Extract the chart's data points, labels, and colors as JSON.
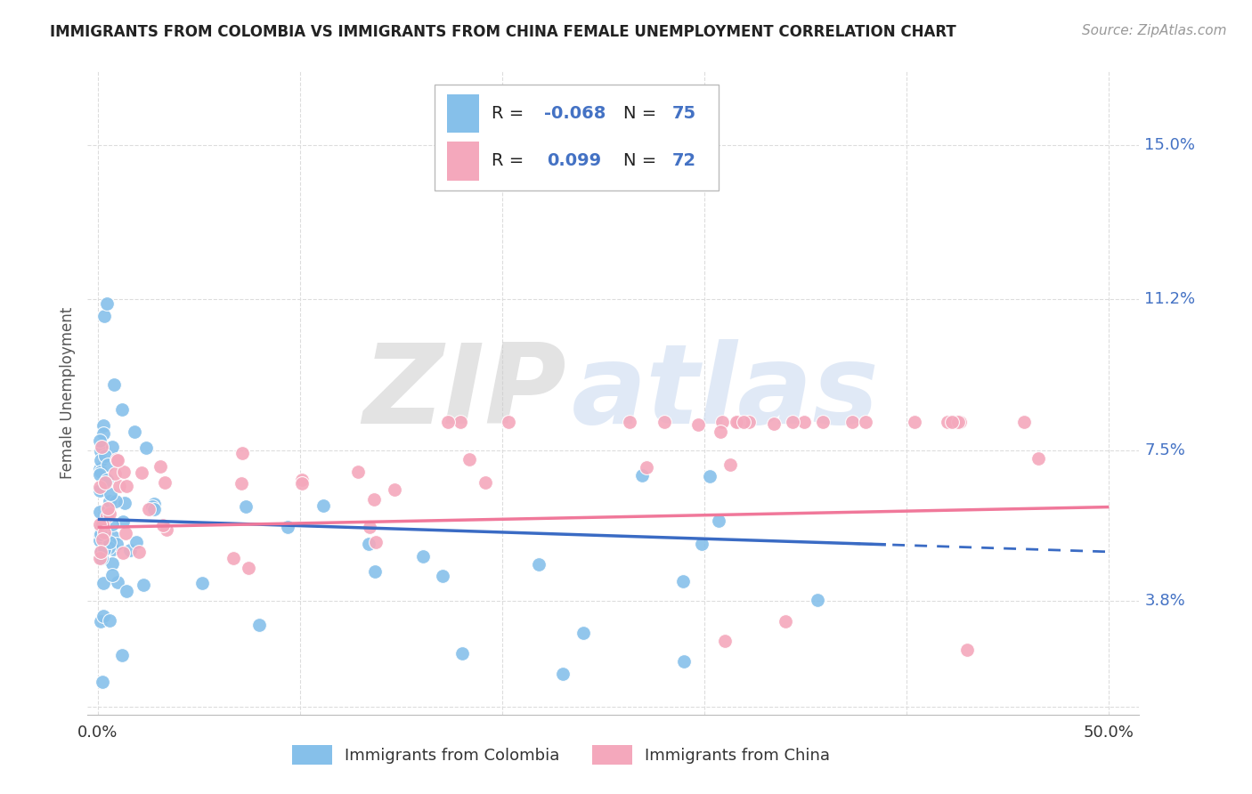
{
  "title": "IMMIGRANTS FROM COLOMBIA VS IMMIGRANTS FROM CHINA FEMALE UNEMPLOYMENT CORRELATION CHART",
  "source": "Source: ZipAtlas.com",
  "ylabel": "Female Unemployment",
  "xlim": [
    -0.005,
    0.515
  ],
  "ylim": [
    0.01,
    0.168
  ],
  "xticks": [
    0.0,
    0.1,
    0.2,
    0.3,
    0.4,
    0.5
  ],
  "xtick_labels": [
    "0.0%",
    "",
    "",
    "",
    "",
    "50.0%"
  ],
  "ytick_positions": [
    0.038,
    0.075,
    0.112,
    0.15
  ],
  "ytick_labels": [
    "3.8%",
    "7.5%",
    "11.2%",
    "15.0%"
  ],
  "colombia_color": "#86C0EA",
  "china_color": "#F4A8BC",
  "colombia_line_color": "#3A6BC4",
  "china_line_color": "#F0789A",
  "colombia_R": -0.068,
  "colombia_N": 75,
  "china_R": 0.099,
  "china_N": 72,
  "watermark_zip_color": "#CCCCCC",
  "watermark_atlas_color": "#C8D8F0",
  "grid_color": "#DDDDDD",
  "background_color": "#FFFFFF",
  "title_fontsize": 12,
  "source_fontsize": 11,
  "tick_fontsize": 13,
  "ylabel_fontsize": 12,
  "legend_fontsize": 14
}
